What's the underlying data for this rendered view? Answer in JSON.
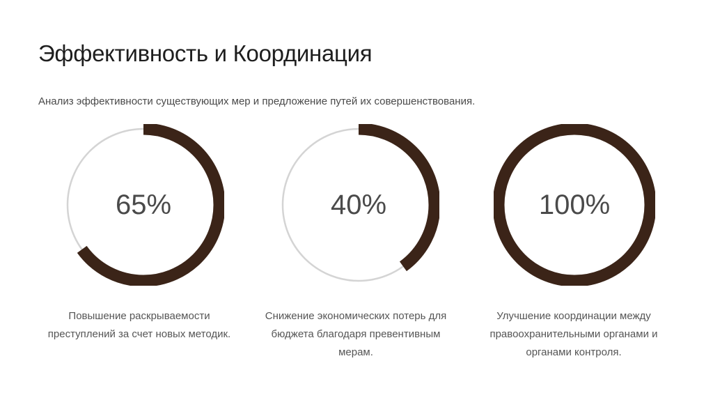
{
  "slide": {
    "title": "Эффективность и Координация",
    "subtitle": "Анализ эффективности существующих мер и предложение путей их совершенствования."
  },
  "colors": {
    "accent": "#3b2418",
    "track": "#d4d4d4"
  },
  "stats": [
    {
      "value_label": "65%",
      "fraction": 0.65,
      "caption_lines": [
        "Повышение раскрываемости",
        "преступлений за счет новых методик."
      ]
    },
    {
      "value_label": "40%",
      "fraction": 0.4,
      "caption_lines": [
        "Снижение экономических потерь для",
        "бюджета благодаря превентивным",
        "мерам."
      ]
    },
    {
      "value_label": "100%",
      "fraction": 1.0,
      "caption_lines": [
        "Улучшение координации между",
        "правоохранительными органами и",
        "органами контроля."
      ]
    }
  ]
}
